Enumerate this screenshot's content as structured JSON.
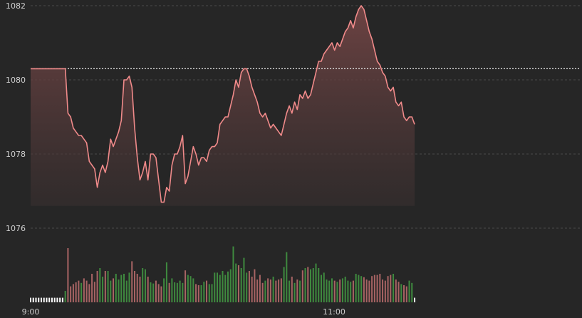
{
  "chart_data": {
    "type": "line",
    "title": "",
    "xlabel": "",
    "ylabel": "",
    "ylim": [
      1075.6,
      1082.2
    ],
    "y_ticks": [
      1076,
      1078,
      1080,
      1082
    ],
    "x_ticks": [
      {
        "label": "9:00",
        "minute": 0
      },
      {
        "label": "11:00",
        "minute": 120
      }
    ],
    "reference_value": 1080.3,
    "grid": true,
    "price": [
      1080.3,
      1080.3,
      1080.3,
      1080.3,
      1080.3,
      1080.3,
      1080.3,
      1080.3,
      1080.3,
      1080.3,
      1080.3,
      1080.3,
      1080.3,
      1080.3,
      1079.1,
      1079.0,
      1078.7,
      1078.6,
      1078.5,
      1078.5,
      1078.4,
      1078.3,
      1077.8,
      1077.7,
      1077.6,
      1077.1,
      1077.5,
      1077.7,
      1077.5,
      1077.8,
      1078.4,
      1078.2,
      1078.4,
      1078.6,
      1078.9,
      1080.0,
      1080.0,
      1080.1,
      1079.8,
      1078.7,
      1077.9,
      1077.3,
      1077.5,
      1077.8,
      1077.3,
      1078.0,
      1078.0,
      1077.9,
      1077.3,
      1076.7,
      1076.7,
      1077.1,
      1077.0,
      1077.7,
      1078.0,
      1078.0,
      1078.2,
      1078.5,
      1077.2,
      1077.4,
      1077.8,
      1078.2,
      1078.0,
      1077.7,
      1077.9,
      1077.9,
      1077.8,
      1078.1,
      1078.2,
      1078.2,
      1078.3,
      1078.8,
      1078.9,
      1079.0,
      1079.0,
      1079.3,
      1079.6,
      1080.0,
      1079.8,
      1080.2,
      1080.3,
      1080.3,
      1080.1,
      1079.8,
      1079.6,
      1079.4,
      1079.1,
      1079.0,
      1079.1,
      1078.9,
      1078.7,
      1078.8,
      1078.7,
      1078.6,
      1078.5,
      1078.8,
      1079.1,
      1079.3,
      1079.1,
      1079.4,
      1079.2,
      1079.6,
      1079.5,
      1079.7,
      1079.5,
      1079.6,
      1079.9,
      1080.2,
      1080.5,
      1080.5,
      1080.7,
      1080.8,
      1080.9,
      1081.0,
      1080.8,
      1081.0,
      1080.9,
      1081.1,
      1081.3,
      1081.4,
      1081.6,
      1081.4,
      1081.7,
      1081.9,
      1082.0,
      1081.9,
      1081.6,
      1081.3,
      1081.1,
      1080.8,
      1080.5,
      1080.4,
      1080.2,
      1080.1,
      1079.8,
      1079.7,
      1079.8,
      1079.4,
      1079.3,
      1079.4,
      1079.0,
      1078.9,
      1079.0,
      1079.0,
      1078.8
    ],
    "volume": [
      0.08,
      0.08,
      0.08,
      0.08,
      0.08,
      0.08,
      0.08,
      0.08,
      0.08,
      0.08,
      0.08,
      0.08,
      0.08,
      0.2,
      0.95,
      0.28,
      0.32,
      0.35,
      0.38,
      0.34,
      0.42,
      0.38,
      0.32,
      0.5,
      0.36,
      0.55,
      0.6,
      0.45,
      0.55,
      0.55,
      0.38,
      0.42,
      0.5,
      0.4,
      0.48,
      0.5,
      0.38,
      0.52,
      0.72,
      0.55,
      0.5,
      0.45,
      0.6,
      0.58,
      0.45,
      0.35,
      0.33,
      0.38,
      0.32,
      0.28,
      0.42,
      0.7,
      0.34,
      0.42,
      0.35,
      0.34,
      0.38,
      0.34,
      0.56,
      0.48,
      0.46,
      0.42,
      0.32,
      0.3,
      0.3,
      0.36,
      0.38,
      0.32,
      0.32,
      0.52,
      0.52,
      0.48,
      0.55,
      0.48,
      0.54,
      0.58,
      0.98,
      0.68,
      0.65,
      0.6,
      0.78,
      0.52,
      0.55,
      0.45,
      0.58,
      0.4,
      0.48,
      0.34,
      0.38,
      0.42,
      0.4,
      0.45,
      0.38,
      0.4,
      0.42,
      0.62,
      0.88,
      0.38,
      0.45,
      0.34,
      0.4,
      0.38,
      0.56,
      0.6,
      0.62,
      0.58,
      0.6,
      0.68,
      0.6,
      0.48,
      0.52,
      0.4,
      0.38,
      0.42,
      0.38,
      0.36,
      0.4,
      0.42,
      0.45,
      0.38,
      0.36,
      0.38,
      0.5,
      0.48,
      0.46,
      0.44,
      0.4,
      0.38,
      0.46,
      0.48,
      0.48,
      0.5,
      0.4,
      0.38,
      0.46,
      0.48,
      0.5,
      0.4,
      0.36,
      0.32,
      0.3,
      0.28,
      0.38,
      0.34,
      0.08
    ]
  }
}
